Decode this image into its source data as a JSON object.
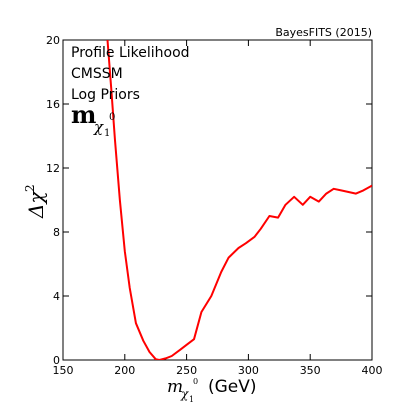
{
  "chart_data": {
    "type": "line",
    "credit": "BayesFITS (2015)",
    "annotations": [
      "Profile Likelihood",
      "CMSSM",
      "Log Priors"
    ],
    "panel_label": {
      "main": "m",
      "sub": "χ",
      "sub_sub": "1",
      "sup": "0"
    },
    "xlabel": {
      "symbol": "m",
      "sub": "χ",
      "sub_sub": "1",
      "sup": "0",
      "unit": "(GeV)"
    },
    "ylabel": {
      "symbol": "Δχ",
      "sup": "2"
    },
    "xlim": [
      150,
      400
    ],
    "ylim": [
      0,
      20
    ],
    "xticks": [
      "150",
      "200",
      "250",
      "300",
      "350",
      "400"
    ],
    "yticks": [
      "0",
      "4",
      "8",
      "12",
      "16",
      "20"
    ],
    "grid": false,
    "series": [
      {
        "color": "#ff0000",
        "x": [
          186.0,
          189.0,
          192.0,
          196.0,
          200.0,
          204.0,
          209.0,
          215.0,
          220.0,
          225.0,
          228.0,
          233.0,
          238.0,
          245.0,
          250.0,
          256.0,
          262.0,
          270.0,
          278.0,
          284.0,
          292.0,
          298.0,
          305.0,
          310.0,
          317.0,
          324.0,
          330.0,
          337.0,
          344.0,
          350.0,
          357.0,
          363.0,
          369.0,
          375.0,
          381.0,
          387.0,
          393.0,
          400.0
        ],
        "y": [
          20.0,
          17.0,
          13.8,
          10.0,
          6.8,
          4.5,
          2.3,
          1.2,
          0.5,
          0.05,
          0.0,
          0.1,
          0.25,
          0.65,
          0.95,
          1.3,
          3.0,
          4.0,
          5.5,
          6.4,
          7.0,
          7.3,
          7.7,
          8.2,
          9.0,
          8.9,
          9.7,
          10.2,
          9.7,
          10.2,
          9.9,
          10.4,
          10.7,
          10.6,
          10.5,
          10.4,
          10.6,
          10.9
        ]
      }
    ]
  }
}
